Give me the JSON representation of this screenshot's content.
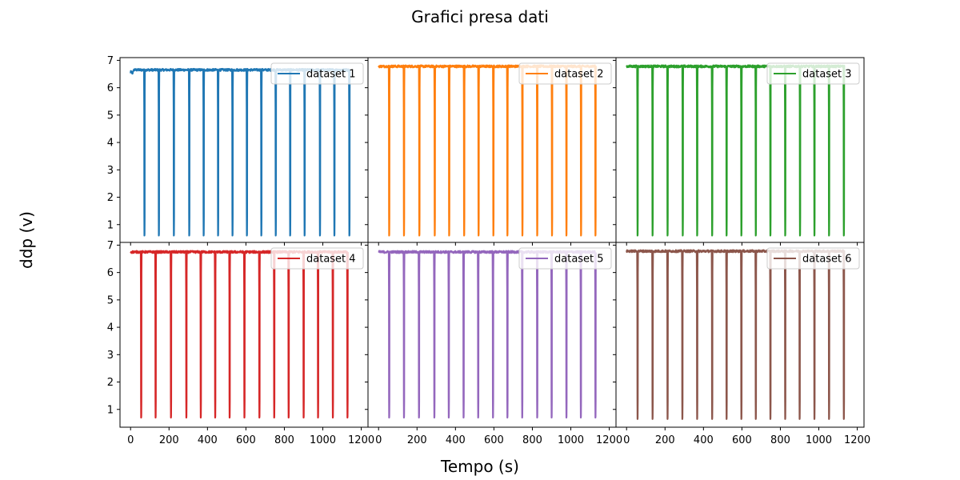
{
  "figure": {
    "title": "Grafici presa dati",
    "xlabel": "Tempo (s)",
    "ylabel": "ddp (v)"
  },
  "chart_data": {
    "type": "line",
    "layout": "2x3 grid, shared axes",
    "xlim": [
      -55,
      1235
    ],
    "ylim": [
      0.35,
      7.1
    ],
    "xticks": [
      0,
      200,
      400,
      600,
      800,
      1000,
      1200
    ],
    "yticks": [
      1,
      2,
      3,
      4,
      5,
      6,
      7
    ],
    "legend_position": "upper right",
    "panels": [
      {
        "name": "dataset 1",
        "color": "#1f77b4",
        "t_start": 0,
        "t_end": 1140,
        "baseline": 6.65,
        "dip_low": 0.6,
        "dip_times": [
          72,
          147,
          225,
          305,
          380,
          455,
          530,
          605,
          680,
          755,
          830,
          905,
          985,
          1060,
          1138
        ]
      },
      {
        "name": "dataset 2",
        "color": "#ff7f0e",
        "t_start": 0,
        "t_end": 1130,
        "baseline": 6.78,
        "dip_low": 0.6,
        "dip_times": [
          55,
          132,
          212,
          292,
          367,
          445,
          520,
          597,
          670,
          748,
          825,
          902,
          977,
          1053,
          1128
        ]
      },
      {
        "name": "dataset 3",
        "color": "#2ca02c",
        "t_start": 0,
        "t_end": 1135,
        "baseline": 6.78,
        "dip_low": 0.6,
        "dip_times": [
          57,
          135,
          213,
          292,
          367,
          445,
          520,
          597,
          672,
          748,
          825,
          902,
          977,
          1053,
          1130
        ]
      },
      {
        "name": "dataset 4",
        "color": "#d62728",
        "t_start": 0,
        "t_end": 1130,
        "baseline": 6.75,
        "dip_low": 0.7,
        "dip_times": [
          55,
          130,
          210,
          290,
          365,
          440,
          515,
          592,
          670,
          747,
          822,
          900,
          975,
          1052,
          1128
        ]
      },
      {
        "name": "dataset 5",
        "color": "#9467bd",
        "t_start": 0,
        "t_end": 1130,
        "baseline": 6.75,
        "dip_low": 0.7,
        "dip_times": [
          55,
          132,
          210,
          290,
          365,
          442,
          518,
          595,
          670,
          747,
          825,
          900,
          977,
          1052,
          1128
        ]
      },
      {
        "name": "dataset 6",
        "color": "#8c564b",
        "t_start": 0,
        "t_end": 1135,
        "baseline": 6.78,
        "dip_low": 0.65,
        "dip_times": [
          57,
          135,
          213,
          290,
          367,
          445,
          520,
          597,
          672,
          748,
          825,
          900,
          977,
          1053,
          1130
        ]
      }
    ]
  }
}
